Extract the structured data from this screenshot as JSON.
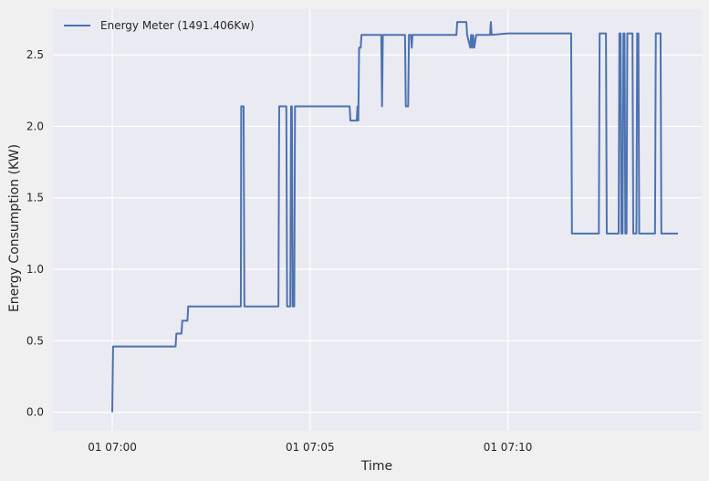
{
  "chart_data": {
    "type": "line",
    "title": "",
    "xlabel": "Time",
    "ylabel": "Energy Consumption (KW)",
    "x_unit": "minutes after 07:00",
    "xlim": [
      -1.5,
      14.9
    ],
    "ylim": [
      -0.13,
      2.82
    ],
    "x_ticks": [
      {
        "value": 0,
        "label": "01 07:00"
      },
      {
        "value": 5,
        "label": "01 07:05"
      },
      {
        "value": 10,
        "label": "01 07:10"
      }
    ],
    "y_ticks": [
      {
        "value": 0.0,
        "label": "0.0"
      },
      {
        "value": 0.5,
        "label": "0.5"
      },
      {
        "value": 1.0,
        "label": "1.0"
      },
      {
        "value": 1.5,
        "label": "1.5"
      },
      {
        "value": 2.0,
        "label": "2.0"
      },
      {
        "value": 2.5,
        "label": "2.5"
      }
    ],
    "grid": true,
    "legend_position": "top-left",
    "series": [
      {
        "name": "Energy Meter (1491.406Kw)",
        "color": "#4c72b0",
        "points": [
          [
            0.0,
            0.0
          ],
          [
            0.02,
            0.46
          ],
          [
            0.5,
            0.46
          ],
          [
            1.0,
            0.46
          ],
          [
            1.5,
            0.46
          ],
          [
            1.6,
            0.46
          ],
          [
            1.62,
            0.55
          ],
          [
            1.75,
            0.55
          ],
          [
            1.77,
            0.64
          ],
          [
            1.9,
            0.64
          ],
          [
            1.92,
            0.74
          ],
          [
            2.5,
            0.74
          ],
          [
            3.25,
            0.74
          ],
          [
            3.26,
            2.14
          ],
          [
            3.32,
            2.14
          ],
          [
            3.34,
            0.74
          ],
          [
            4.0,
            0.74
          ],
          [
            4.2,
            0.74
          ],
          [
            4.22,
            2.14
          ],
          [
            4.4,
            2.14
          ],
          [
            4.42,
            0.74
          ],
          [
            4.5,
            0.74
          ],
          [
            4.52,
            2.14
          ],
          [
            4.54,
            2.14
          ],
          [
            4.56,
            0.74
          ],
          [
            4.6,
            0.74
          ],
          [
            4.62,
            2.14
          ],
          [
            5.0,
            2.14
          ],
          [
            6.0,
            2.14
          ],
          [
            6.02,
            2.04
          ],
          [
            6.18,
            2.04
          ],
          [
            6.2,
            2.14
          ],
          [
            6.22,
            2.04
          ],
          [
            6.24,
            2.55
          ],
          [
            6.28,
            2.55
          ],
          [
            6.3,
            2.64
          ],
          [
            6.8,
            2.64
          ],
          [
            6.82,
            2.14
          ],
          [
            6.84,
            2.64
          ],
          [
            7.4,
            2.64
          ],
          [
            7.42,
            2.14
          ],
          [
            7.48,
            2.14
          ],
          [
            7.5,
            2.64
          ],
          [
            7.55,
            2.64
          ],
          [
            7.57,
            2.55
          ],
          [
            7.59,
            2.64
          ],
          [
            8.0,
            2.64
          ],
          [
            8.5,
            2.64
          ],
          [
            8.7,
            2.64
          ],
          [
            8.72,
            2.73
          ],
          [
            8.95,
            2.73
          ],
          [
            8.97,
            2.64
          ],
          [
            9.05,
            2.55
          ],
          [
            9.07,
            2.64
          ],
          [
            9.1,
            2.55
          ],
          [
            9.12,
            2.64
          ],
          [
            9.15,
            2.55
          ],
          [
            9.2,
            2.64
          ],
          [
            9.55,
            2.64
          ],
          [
            9.57,
            2.73
          ],
          [
            9.59,
            2.64
          ],
          [
            10.0,
            2.65
          ],
          [
            11.0,
            2.65
          ],
          [
            11.6,
            2.65
          ],
          [
            11.62,
            1.25
          ],
          [
            12.3,
            1.25
          ],
          [
            12.32,
            2.65
          ],
          [
            12.48,
            2.65
          ],
          [
            12.5,
            1.25
          ],
          [
            12.8,
            1.25
          ],
          [
            12.82,
            2.65
          ],
          [
            12.85,
            2.65
          ],
          [
            12.87,
            1.25
          ],
          [
            12.9,
            1.25
          ],
          [
            12.92,
            2.65
          ],
          [
            12.95,
            2.65
          ],
          [
            12.97,
            1.25
          ],
          [
            13.0,
            1.25
          ],
          [
            13.02,
            2.65
          ],
          [
            13.15,
            2.65
          ],
          [
            13.17,
            1.25
          ],
          [
            13.25,
            1.25
          ],
          [
            13.27,
            2.65
          ],
          [
            13.3,
            2.65
          ],
          [
            13.32,
            1.25
          ],
          [
            13.5,
            1.25
          ],
          [
            13.72,
            1.25
          ],
          [
            13.74,
            2.65
          ],
          [
            13.86,
            2.65
          ],
          [
            13.88,
            1.25
          ],
          [
            14.2,
            1.25
          ],
          [
            14.3,
            1.25
          ]
        ]
      }
    ]
  }
}
